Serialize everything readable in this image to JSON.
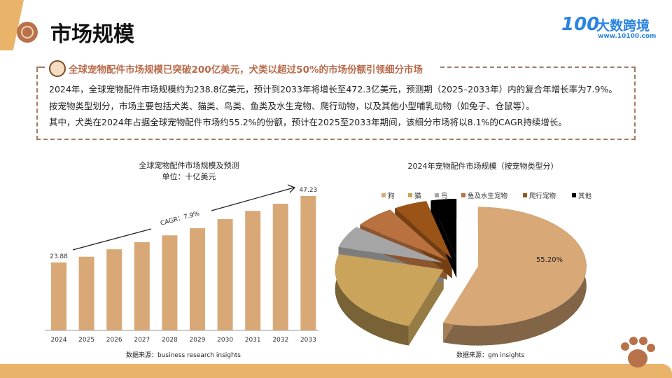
{
  "header": {
    "title": "市场规模",
    "logo_mark": "100",
    "logo_name": "大数跨境",
    "logo_url": "www.10100.com"
  },
  "summary": {
    "headline": "全球宠物配件市场规模已突破200亿美元，犬类以超过50%的市场份额引领细分市场",
    "lines": [
      "2024年，全球宠物配件市场规模约为238.8亿美元，预计到2033年将增长至472.3亿美元，预测期（2025–2033年）内的复合年增长率为7.9%。",
      "按宠物类型划分，市场主要包括犬类、猫类、鸟类、鱼类及水生宠物、爬行动物，以及其他小型哺乳动物（如兔子、仓鼠等）。",
      "其中，犬类在2024年占据全球宠物配件市场约55.2%的份额，预计在2025至2033年期间，该细分市场将以8.1%的CAGR持续增长。"
    ]
  },
  "chart_data": [
    {
      "type": "bar",
      "title": "全球宠物配件市场规模及预测",
      "subtitle": "单位：十亿美元",
      "categories": [
        "2024",
        "2025",
        "2026",
        "2027",
        "2028",
        "2029",
        "2030",
        "2031",
        "2032",
        "2033"
      ],
      "values": [
        23.88,
        25.9,
        28.5,
        31.0,
        33.4,
        35.9,
        39.1,
        42.0,
        44.5,
        47.23
      ],
      "data_labels": {
        "2024": "23.88",
        "2033": "47.23"
      },
      "annotation": "CAGR：7.9%",
      "color": "#d9a877",
      "source": "数据来源：business research insights",
      "ylim": [
        0,
        50
      ]
    },
    {
      "type": "pie",
      "title": "2024年宠物配件市场规模（按宠物类型分）",
      "categories": [
        "狗",
        "猫",
        "鸟",
        "鱼及水生宠物",
        "爬行宠物",
        "其他"
      ],
      "values": [
        55.2,
        24,
        6,
        6,
        5,
        3.8
      ],
      "data_labels": {
        "狗": "55.20%"
      },
      "colors": [
        "#d9a877",
        "#c9a45a",
        "#a5a5a5",
        "#b9713f",
        "#9a5418",
        "#000000"
      ],
      "legend": "top",
      "source": "数据来源：gm insights"
    }
  ]
}
